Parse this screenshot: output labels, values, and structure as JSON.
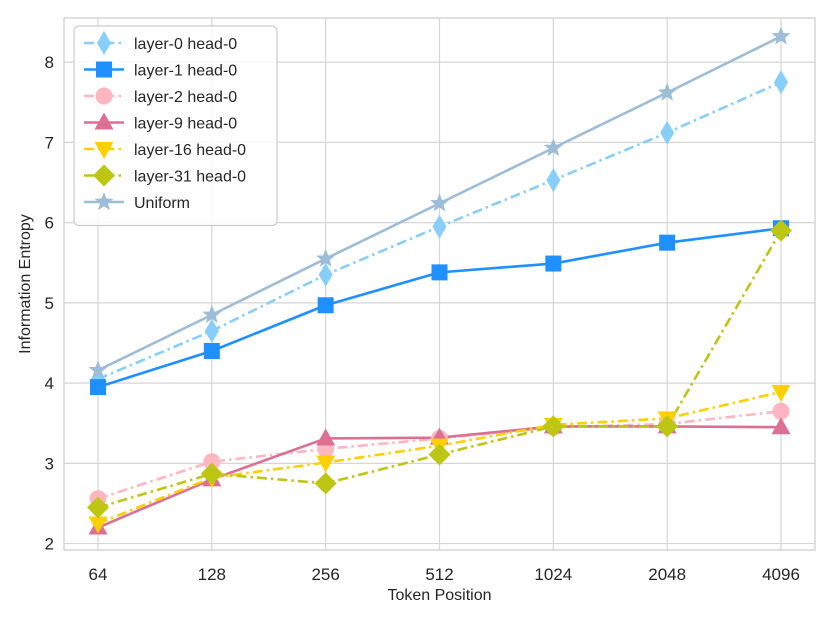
{
  "chart_data": {
    "type": "line",
    "title": "",
    "xlabel": "Token Position",
    "ylabel": "Information Entropy",
    "categories": [
      "64",
      "128",
      "256",
      "512",
      "1024",
      "2048",
      "4096"
    ],
    "ylim": [
      1.92,
      8.55
    ],
    "yticks": [
      2,
      3,
      4,
      5,
      6,
      7,
      8
    ],
    "grid": true,
    "legend_position": "top-left",
    "series": [
      {
        "name": "layer-0 head-0",
        "color": "#87CEFA",
        "dash": "dashdot",
        "marker": "thin-diamond",
        "values": [
          4.05,
          4.65,
          5.35,
          5.95,
          6.53,
          7.12,
          7.75
        ]
      },
      {
        "name": "layer-1 head-0",
        "color": "#1E90FF",
        "dash": "solid",
        "marker": "square",
        "values": [
          3.95,
          4.4,
          4.97,
          5.38,
          5.49,
          5.75,
          5.93
        ]
      },
      {
        "name": "layer-2 head-0",
        "color": "#FFB6C1",
        "dash": "dashdot",
        "marker": "circle",
        "values": [
          2.56,
          3.02,
          3.18,
          3.31,
          3.45,
          3.49,
          3.65
        ]
      },
      {
        "name": "layer-9 head-0",
        "color": "#DB7093",
        "dash": "solid",
        "marker": "triangle-up",
        "values": [
          2.2,
          2.8,
          3.31,
          3.32,
          3.46,
          3.46,
          3.45
        ]
      },
      {
        "name": "layer-16 head-0",
        "color": "#FFD000",
        "dash": "dashdot",
        "marker": "triangle-down",
        "values": [
          2.25,
          2.82,
          3.01,
          3.22,
          3.48,
          3.56,
          3.89
        ]
      },
      {
        "name": "layer-31 head-0",
        "color": "#BDC614",
        "dash": "dashdot",
        "marker": "diamond",
        "values": [
          2.45,
          2.87,
          2.75,
          3.11,
          3.46,
          3.46,
          5.9
        ]
      },
      {
        "name": "Uniform",
        "color": "#9DBCD8",
        "dash": "solid",
        "marker": "star",
        "values": [
          4.16,
          4.85,
          5.55,
          6.24,
          6.93,
          7.62,
          8.32
        ]
      }
    ]
  }
}
